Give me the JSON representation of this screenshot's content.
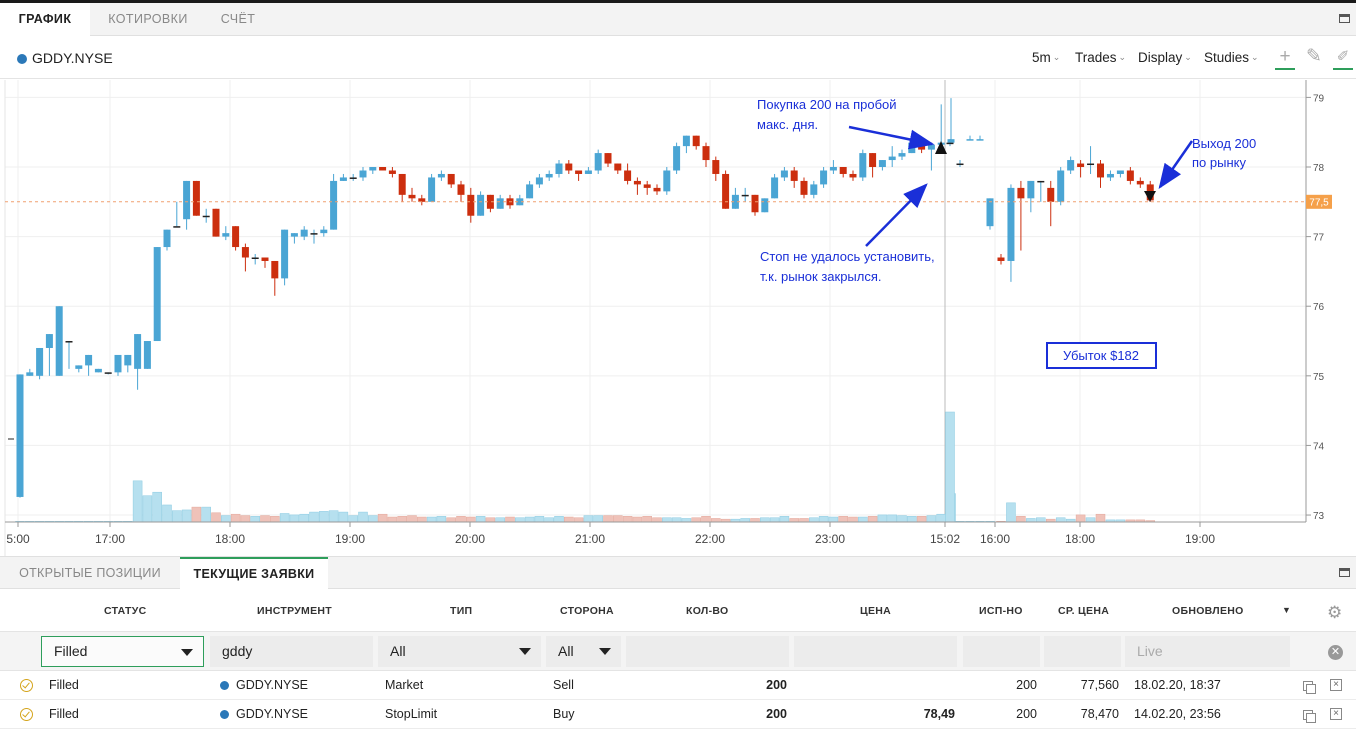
{
  "top_tabs": [
    {
      "label": "ГРАФИК",
      "active": true
    },
    {
      "label": "КОТИРОВКИ",
      "active": false
    },
    {
      "label": "СЧЁТ",
      "active": false
    }
  ],
  "symbol": {
    "name": "GDDY.NYSE",
    "dot_color": "#2b78b8"
  },
  "toolbar": {
    "interval": "5m",
    "trades": "Trades",
    "display": "Display",
    "studies": "Studies",
    "icons": [
      "crosshair-icon",
      "pencil-icon",
      "eraser-icon"
    ]
  },
  "chart_data": {
    "type": "candlestick",
    "yaxis_ticks": [
      "79",
      "78",
      "77",
      "76",
      "75",
      "74",
      "73"
    ],
    "xaxis_ticks": [
      "5:00",
      "17:00",
      "18:00",
      "19:00",
      "20:00",
      "21:00",
      "22:00",
      "23:00",
      "15:02",
      "16:00",
      "18:00",
      "19:00"
    ],
    "current_price_label": "77,5",
    "current_price": 77.5,
    "ylim": [
      72.9,
      79.25
    ],
    "up_color": "#4aa5d4",
    "down_color": "#cc2e0e",
    "candles": [
      [
        73.26,
        75.02,
        75.0,
        73.25
      ],
      [
        75.0,
        75.05,
        75.0,
        75.1
      ],
      [
        75.0,
        75.4,
        75.38,
        74.95
      ],
      [
        75.4,
        75.6,
        75.0,
        75.5
      ],
      [
        75.0,
        76.0,
        75.5,
        75.0
      ],
      [
        75.5,
        75.5,
        75.1,
        75.1
      ],
      [
        75.1,
        75.15,
        75.05,
        75.1
      ],
      [
        75.15,
        75.3,
        75.05,
        75.0
      ],
      [
        75.05,
        75.1,
        75.05,
        75.05
      ],
      [
        75.05,
        75.05,
        75.02,
        75.02
      ],
      [
        75.05,
        75.3,
        75.0,
        75.0
      ],
      [
        75.15,
        75.3,
        75.05,
        75.1
      ],
      [
        75.1,
        75.6,
        75.1,
        74.8
      ],
      [
        75.1,
        75.5,
        75.1,
        75.1
      ],
      [
        75.5,
        76.85,
        76.85,
        75.5
      ],
      [
        76.85,
        77.1,
        77.1,
        76.8
      ],
      [
        77.15,
        77.15,
        77.5,
        77.5
      ],
      [
        77.25,
        77.8,
        77.25,
        77.1
      ],
      [
        77.8,
        77.3,
        77.8,
        77.3
      ],
      [
        77.3,
        77.3,
        77.4,
        77.2
      ],
      [
        77.4,
        77.0,
        77.4,
        77.0
      ],
      [
        77.0,
        77.05,
        77.15,
        76.95
      ],
      [
        77.15,
        76.85,
        77.15,
        76.8
      ],
      [
        76.85,
        76.7,
        76.9,
        76.5
      ],
      [
        76.7,
        76.7,
        76.75,
        76.6
      ],
      [
        76.7,
        76.65,
        76.7,
        76.55
      ],
      [
        76.65,
        76.4,
        76.65,
        76.15
      ],
      [
        76.4,
        77.1,
        77.1,
        76.3
      ],
      [
        77.0,
        77.05,
        77.0,
        76.9
      ],
      [
        77.0,
        77.1,
        77.15,
        76.95
      ],
      [
        77.05,
        77.05,
        77.1,
        76.9
      ],
      [
        77.05,
        77.1,
        77.15,
        77.0
      ],
      [
        77.1,
        77.8,
        77.9,
        77.1
      ],
      [
        77.8,
        77.85,
        77.9,
        77.8
      ],
      [
        77.85,
        77.85,
        77.9,
        77.8
      ],
      [
        77.85,
        77.95,
        78.0,
        77.8
      ],
      [
        77.95,
        78.0,
        78.0,
        77.9
      ],
      [
        78.0,
        77.95,
        78.0,
        77.95
      ],
      [
        77.95,
        77.9,
        78.0,
        77.85
      ],
      [
        77.9,
        77.6,
        77.9,
        77.5
      ],
      [
        77.6,
        77.55,
        77.7,
        77.5
      ],
      [
        77.55,
        77.5,
        77.6,
        77.45
      ],
      [
        77.5,
        77.85,
        77.9,
        77.5
      ],
      [
        77.85,
        77.9,
        77.95,
        77.8
      ],
      [
        77.9,
        77.75,
        77.9,
        77.7
      ],
      [
        77.75,
        77.6,
        77.8,
        77.5
      ],
      [
        77.6,
        77.3,
        77.7,
        77.2
      ],
      [
        77.3,
        77.6,
        77.65,
        77.3
      ],
      [
        77.6,
        77.4,
        77.6,
        77.35
      ],
      [
        77.4,
        77.55,
        77.6,
        77.4
      ],
      [
        77.55,
        77.45,
        77.6,
        77.4
      ],
      [
        77.45,
        77.55,
        77.6,
        77.45
      ],
      [
        77.55,
        77.75,
        77.8,
        77.55
      ],
      [
        77.75,
        77.85,
        77.9,
        77.7
      ],
      [
        77.85,
        77.9,
        77.95,
        77.8
      ],
      [
        77.9,
        78.05,
        78.1,
        77.85
      ],
      [
        78.05,
        77.95,
        78.1,
        77.9
      ],
      [
        77.95,
        77.9,
        77.95,
        77.8
      ],
      [
        77.9,
        77.95,
        78.0,
        77.9
      ],
      [
        77.95,
        78.2,
        78.25,
        77.9
      ],
      [
        78.2,
        78.05,
        78.2,
        78.0
      ],
      [
        78.05,
        77.95,
        78.05,
        77.9
      ],
      [
        77.95,
        77.8,
        78.05,
        77.75
      ],
      [
        77.8,
        77.75,
        77.85,
        77.6
      ],
      [
        77.75,
        77.7,
        77.8,
        77.6
      ],
      [
        77.7,
        77.65,
        77.75,
        77.6
      ],
      [
        77.65,
        77.95,
        78.0,
        77.6
      ],
      [
        77.95,
        78.3,
        78.35,
        77.9
      ],
      [
        78.3,
        78.45,
        78.45,
        78.2
      ],
      [
        78.45,
        78.3,
        78.45,
        78.25
      ],
      [
        78.3,
        78.1,
        78.35,
        78.0
      ],
      [
        78.1,
        77.9,
        78.15,
        77.8
      ],
      [
        77.9,
        77.4,
        77.95,
        77.4
      ],
      [
        77.4,
        77.6,
        77.7,
        77.4
      ],
      [
        77.6,
        77.6,
        77.7,
        77.5
      ],
      [
        77.6,
        77.35,
        77.6,
        77.3
      ],
      [
        77.35,
        77.55,
        77.55,
        77.35
      ],
      [
        77.55,
        77.85,
        77.9,
        77.55
      ],
      [
        77.85,
        77.95,
        78.0,
        77.8
      ],
      [
        77.95,
        77.8,
        78.0,
        77.7
      ],
      [
        77.8,
        77.6,
        77.85,
        77.55
      ],
      [
        77.6,
        77.75,
        77.8,
        77.55
      ],
      [
        77.75,
        77.95,
        78.0,
        77.7
      ],
      [
        77.95,
        78.0,
        78.1,
        77.9
      ],
      [
        78.0,
        77.9,
        78.0,
        77.85
      ],
      [
        77.9,
        77.85,
        77.95,
        77.8
      ],
      [
        77.85,
        78.2,
        78.25,
        77.8
      ],
      [
        78.2,
        78.0,
        78.2,
        77.85
      ],
      [
        78.0,
        78.1,
        78.1,
        77.95
      ],
      [
        78.1,
        78.15,
        78.3,
        78.0
      ],
      [
        78.15,
        78.2,
        78.25,
        78.1
      ],
      [
        78.2,
        78.35,
        78.35,
        78.2
      ],
      [
        78.35,
        78.25,
        78.4,
        78.2
      ],
      [
        78.25,
        78.32,
        78.35,
        77.95
      ],
      [
        78.32,
        78.35,
        78.9,
        78.35
      ],
      [
        78.35,
        78.4,
        78.99,
        78.4
      ],
      [
        78.35,
        78.35,
        78.4,
        78.3
      ],
      [
        78.05,
        78.05,
        78.1,
        78.0
      ],
      [
        78.38,
        78.4,
        78.45,
        78.4
      ],
      [
        78.38,
        78.4,
        78.45,
        78.4
      ],
      [
        77.15,
        77.55,
        77.55,
        77.1
      ],
      [
        76.7,
        76.65,
        76.75,
        76.6
      ],
      [
        76.65,
        77.7,
        77.75,
        76.35
      ],
      [
        77.7,
        77.55,
        77.8,
        76.8
      ],
      [
        77.55,
        77.8,
        77.8,
        77.35
      ],
      [
        77.8,
        77.8,
        77.8,
        77.5
      ],
      [
        77.7,
        77.5,
        77.8,
        77.15
      ],
      [
        77.5,
        77.95,
        78.0,
        77.45
      ],
      [
        77.95,
        78.1,
        78.15,
        77.9
      ],
      [
        78.05,
        78.0,
        78.1,
        77.85
      ],
      [
        78.05,
        78.05,
        78.3,
        77.9
      ],
      [
        78.05,
        77.85,
        78.1,
        77.7
      ],
      [
        77.85,
        77.9,
        77.95,
        77.8
      ],
      [
        77.9,
        77.95,
        77.95,
        77.85
      ],
      [
        77.95,
        77.8,
        78.0,
        77.75
      ],
      [
        77.8,
        77.75,
        77.85,
        77.7
      ],
      [
        77.75,
        77.52,
        77.8,
        77.5
      ]
    ],
    "volume": [
      0.01,
      0.01,
      0.01,
      0.01,
      0.01,
      0.01,
      0.01,
      0.01,
      0.01,
      0.01,
      0.01,
      0.01,
      0.58,
      0.37,
      0.42,
      0.24,
      0.16,
      0.17,
      0.21,
      0.21,
      0.13,
      0.09,
      0.11,
      0.09,
      0.08,
      0.09,
      0.08,
      0.12,
      0.1,
      0.11,
      0.14,
      0.15,
      0.16,
      0.14,
      0.09,
      0.14,
      0.09,
      0.11,
      0.07,
      0.08,
      0.09,
      0.07,
      0.07,
      0.08,
      0.06,
      0.08,
      0.07,
      0.08,
      0.06,
      0.06,
      0.07,
      0.06,
      0.07,
      0.08,
      0.06,
      0.08,
      0.07,
      0.06,
      0.09,
      0.09,
      0.09,
      0.09,
      0.08,
      0.07,
      0.08,
      0.06,
      0.06,
      0.06,
      0.05,
      0.06,
      0.08,
      0.05,
      0.04,
      0.04,
      0.05,
      0.05,
      0.06,
      0.06,
      0.08,
      0.05,
      0.05,
      0.06,
      0.08,
      0.07,
      0.08,
      0.07,
      0.07,
      0.08,
      0.1,
      0.1,
      0.09,
      0.08,
      0.08,
      0.09,
      0.11,
      0.4,
      1.55,
      0.01,
      0.01,
      0.01,
      0.01,
      0.01,
      0.27,
      0.08,
      0.05,
      0.06,
      0.04,
      0.06,
      0.04,
      0.1,
      0.06,
      0.11,
      0.03,
      0.03,
      0.03,
      0.03,
      0.02
    ],
    "volume_colors_down_indices_note": ""
  },
  "annotations": [
    {
      "text": "Покупка 200 на пробой",
      "text2": "макс. дня."
    },
    {
      "text": "Стоп не удалось установить,",
      "text2": "т.к. рынок закрылся."
    },
    {
      "text": "Выход 200",
      "text2": "по рынку"
    },
    {
      "text": "Убыток $182"
    }
  ],
  "lower_tabs": [
    {
      "label": "ОТКРЫТЫЕ ПОЗИЦИИ",
      "active": false
    },
    {
      "label": "ТЕКУЩИЕ ЗАЯВКИ",
      "active": true
    }
  ],
  "orders_table": {
    "columns": [
      "СТАТУС",
      "ИНСТРУМЕНТ",
      "ТИП",
      "СТОРОНА",
      "КОЛ-ВО",
      "ЦЕНА",
      "ИСП-НО",
      "СР. ЦЕНА",
      "ОБНОВЛЕНО"
    ],
    "filters": {
      "status": "Filled",
      "instrument": "gddy",
      "type": "All",
      "side": "All",
      "updated_placeholder": "Live"
    },
    "rows": [
      {
        "status": "Filled",
        "instrument": "GDDY.NYSE",
        "type": "Market",
        "side": "Sell",
        "qty": "200",
        "price": "",
        "filled": "200",
        "avg_price": "77,560",
        "updated": "18.02.20, 18:37"
      },
      {
        "status": "Filled",
        "instrument": "GDDY.NYSE",
        "type": "StopLimit",
        "side": "Buy",
        "qty": "200",
        "price": "78,49",
        "filled": "200",
        "avg_price": "78,470",
        "updated": "14.02.20, 23:56"
      }
    ]
  }
}
